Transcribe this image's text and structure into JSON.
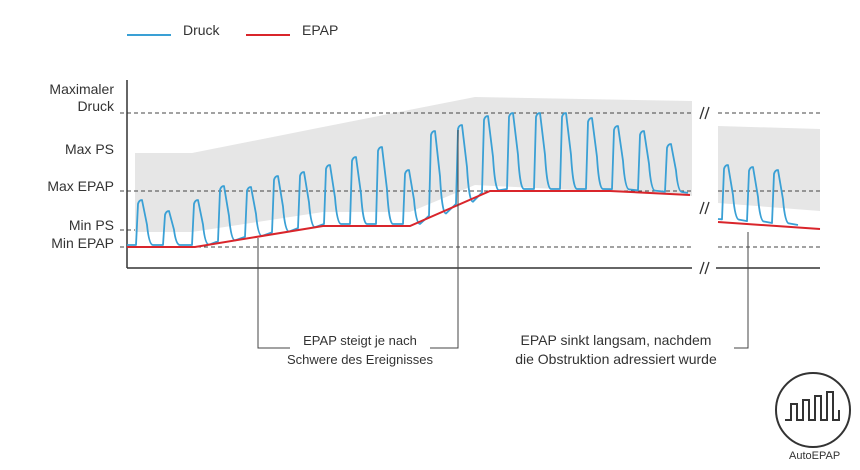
{
  "legend": {
    "pressure_label": "Druck",
    "epap_label": "EPAP"
  },
  "axis_labels": {
    "max_pressure_line1": "Maximaler",
    "max_pressure_line2": "Druck",
    "max_ps": "Max PS",
    "max_epap": "Max EPAP",
    "min_ps": "Min PS",
    "min_epap": "Min EPAP"
  },
  "annotations": {
    "rise_line1": "EPAP steigt je nach",
    "rise_line2": "Schwere des Ereignisses",
    "fall_line1": "EPAP sinkt langsam, nachdem",
    "fall_line2": "die Obstruktion adressiert wurde"
  },
  "badge": {
    "label": "AutoEPAP",
    "icon": "square-wave-icon"
  },
  "colors": {
    "pressure": "#3aa0d5",
    "epap": "#d9252b",
    "band": "#e6e6e6",
    "axis": "#333333"
  }
}
